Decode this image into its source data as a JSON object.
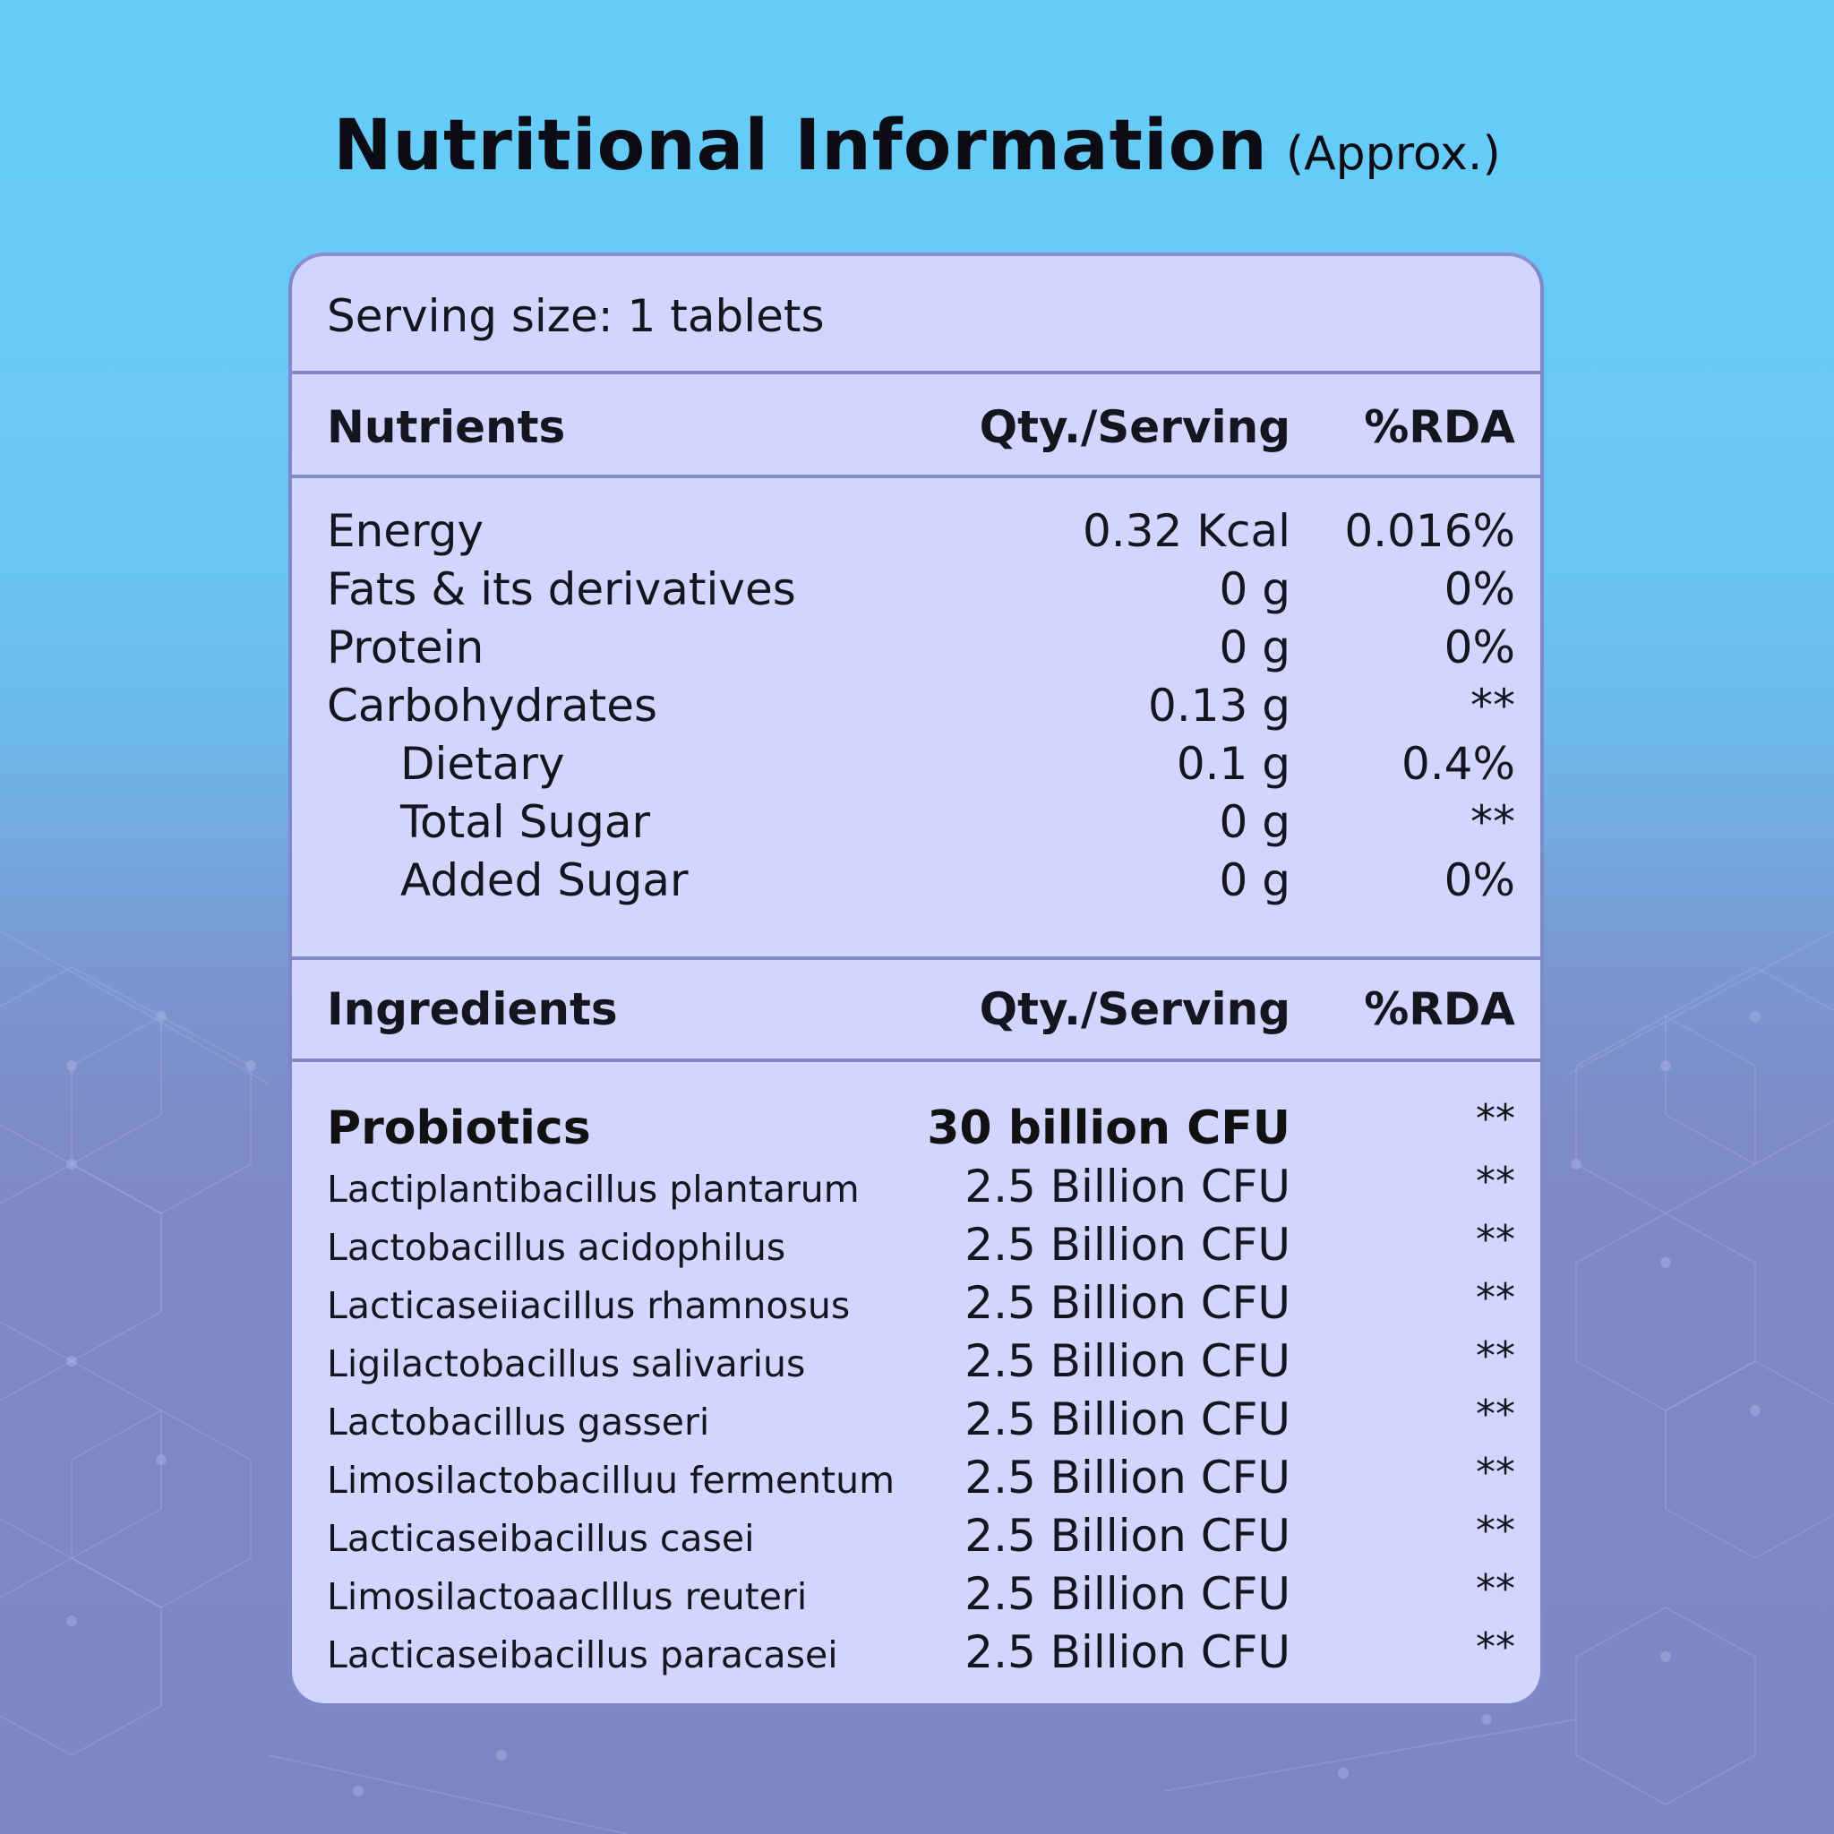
{
  "title": {
    "main": "Nutritional Information",
    "sub": "(Approx.)"
  },
  "serving_size": "Serving size: 1 tablets",
  "nutrients_header": {
    "name": "Nutrients",
    "qty": "Qty./Serving",
    "rda": "%RDA"
  },
  "nutrients": [
    {
      "name": "Energy",
      "qty": "0.32 Kcal",
      "rda": "0.016%"
    },
    {
      "name": "Fats & its derivatives",
      "qty": "0 g",
      "rda": "0%"
    },
    {
      "name": "Protein",
      "qty": "0 g",
      "rda": "0%"
    },
    {
      "name": "Carbohydrates",
      "qty": "0.13 g",
      "rda": "**"
    },
    {
      "name": "Dietary",
      "qty": "0.1 g",
      "rda": "0.4%"
    },
    {
      "name": "Total Sugar",
      "qty": "0 g",
      "rda": "**"
    },
    {
      "name": "Added Sugar",
      "qty": "0 g",
      "rda": "0%"
    }
  ],
  "ingredients_header": {
    "name": "Ingredients",
    "qty": "Qty./Serving",
    "rda": "%RDA"
  },
  "probiotics": {
    "name": "Probiotics",
    "qty": "30 billion CFU",
    "rda": "**"
  },
  "ingredients": [
    {
      "name": "Lactiplantibacillus plantarum",
      "qty": "2.5 Billion CFU",
      "rda": "**"
    },
    {
      "name": "Lactobacillus acidophilus",
      "qty": "2.5 Billion CFU",
      "rda": "**"
    },
    {
      "name": "Lacticaseiiacillus rhamnosus",
      "qty": "2.5 Billion CFU",
      "rda": "**"
    },
    {
      "name": "Ligilactobacillus salivarius",
      "qty": "2.5 Billion CFU",
      "rda": "**"
    },
    {
      "name": "Lactobacillus gasseri",
      "qty": "2.5 Billion CFU",
      "rda": "**"
    },
    {
      "name": "Limosilactobacilluu fermentum",
      "qty": "2.5 Billion CFU",
      "rda": "**"
    },
    {
      "name": "Lacticaseibacillus casei",
      "qty": "2.5 Billion CFU",
      "rda": "**"
    },
    {
      "name": "Limosilactoaaclllus reuteri",
      "qty": "2.5 Billion CFU",
      "rda": "**"
    },
    {
      "name": "Lacticaseibacillus paracasei",
      "qty": "2.5 Billion CFU",
      "rda": "**"
    }
  ]
}
